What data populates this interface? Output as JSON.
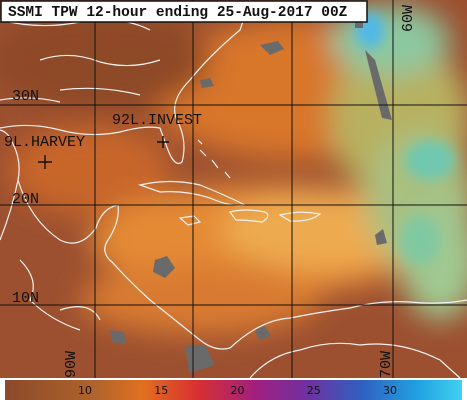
{
  "title": "SSMI TPW 12-hour ending 25-Aug-2017 00Z",
  "latitude_labels": [
    "30N",
    "20N",
    "10N"
  ],
  "longitude_labels": [
    "60W",
    "90W",
    "70W"
  ],
  "storm_labels": [
    "9L.HARVEY",
    "92L.INVEST"
  ],
  "colorbar": {
    "ticks": [
      10,
      15,
      20,
      25,
      30
    ]
  }
}
